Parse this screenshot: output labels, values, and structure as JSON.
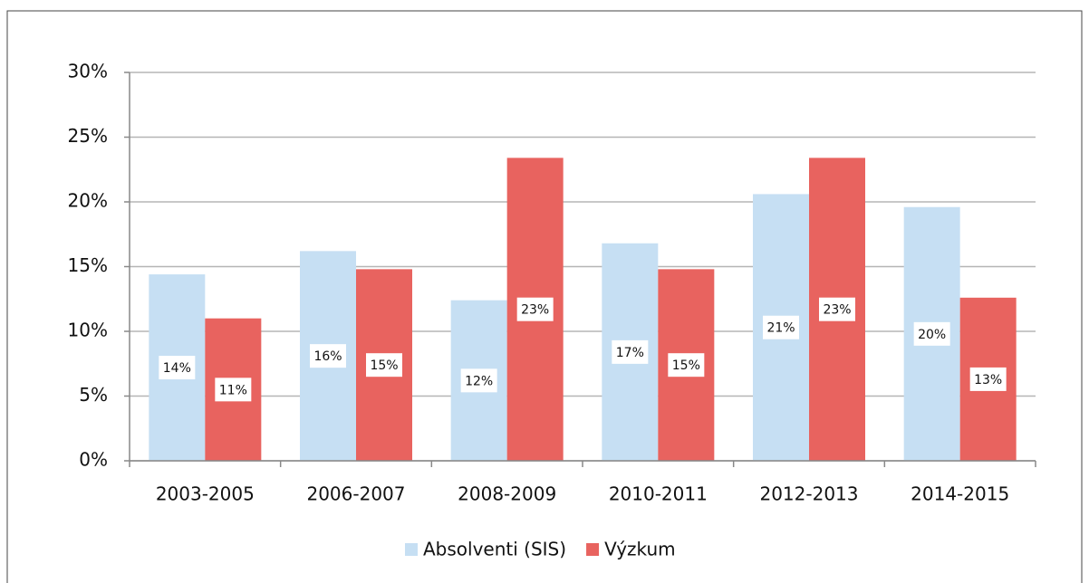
{
  "chart_data": {
    "type": "bar",
    "categories": [
      "2003-2005",
      "2006-2007",
      "2008-2009",
      "2010-2011",
      "2012-2013",
      "2014-2015"
    ],
    "series": [
      {
        "name": "Absolventi (SIS)",
        "color": "#c6dff3",
        "values": [
          14.4,
          16.2,
          12.4,
          16.8,
          20.6,
          19.6
        ],
        "value_labels": [
          "14%",
          "16%",
          "12%",
          "17%",
          "21%",
          "20%"
        ]
      },
      {
        "name": "Výzkum",
        "color": "#e8635f",
        "values": [
          11.0,
          14.8,
          23.4,
          14.8,
          23.4,
          12.6
        ],
        "value_labels": [
          "11%",
          "15%",
          "23%",
          "15%",
          "23%",
          "13%"
        ]
      }
    ],
    "ylim": [
      0,
      30
    ],
    "yticks": [
      {
        "value": 0,
        "label": "0%"
      },
      {
        "value": 5,
        "label": "5%"
      },
      {
        "value": 10,
        "label": "10%"
      },
      {
        "value": 15,
        "label": "15%"
      },
      {
        "value": 20,
        "label": "20%"
      },
      {
        "value": 25,
        "label": "25%"
      },
      {
        "value": 30,
        "label": "30%"
      }
    ],
    "grid": true,
    "legend": "bottom"
  }
}
